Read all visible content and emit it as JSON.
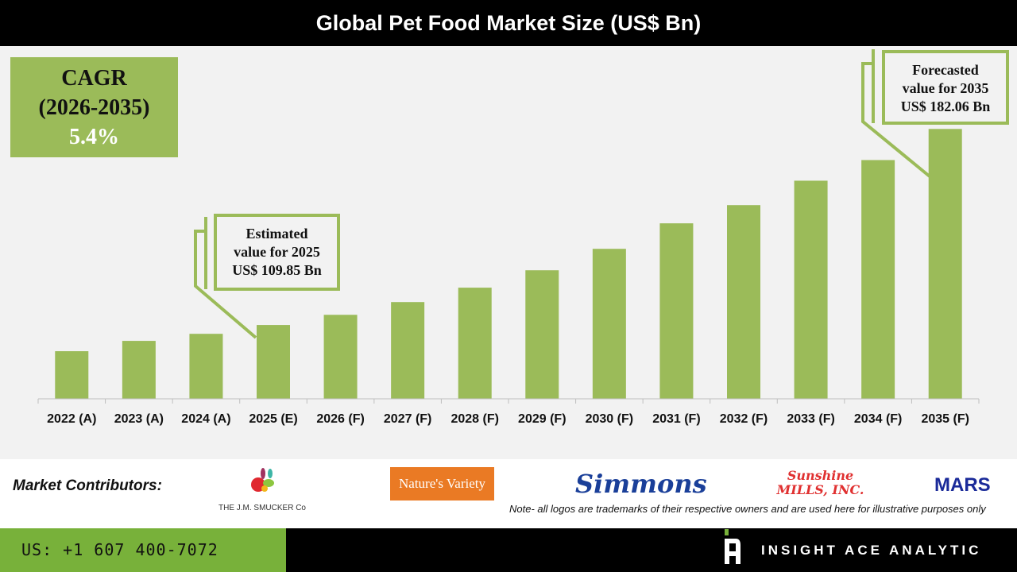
{
  "title": "Global Pet Food Market Size (US$ Bn)",
  "cagr": {
    "label": "CAGR",
    "period": "(2026-2035)",
    "value": "5.4%"
  },
  "callouts": {
    "estimated": {
      "line1": "Estimated",
      "line2": "value for 2025",
      "line3": "US$ 109.85 Bn"
    },
    "forecasted": {
      "line1": "Forecasted",
      "line2": "value for 2035",
      "line3": "US$ 182.06 Bn"
    }
  },
  "chart_data": {
    "type": "bar",
    "title": "Global Pet Food Market Size (US$ Bn)",
    "categories": [
      "2022 (A)",
      "2023 (A)",
      "2024 (A)",
      "2025 (E)",
      "2026 (F)",
      "2027 (F)",
      "2028 (F)",
      "2029 (F)",
      "2030 (F)",
      "2031 (F)",
      "2032 (F)",
      "2033 (F)",
      "2034 (F)",
      "2035 (F)"
    ],
    "values": [
      100.2,
      104.0,
      106.6,
      109.85,
      113.6,
      118.3,
      123.6,
      130.0,
      137.9,
      147.3,
      154.0,
      163.0,
      170.6,
      182.06
    ],
    "ylim": [
      82.66,
      200
    ],
    "xlabel": "",
    "ylabel": "",
    "grid": false,
    "bar_color": "#9bbb59"
  },
  "footer": {
    "contributors_label": "Market Contributors:",
    "logos": [
      "THE J.M. SMUCKER Co",
      "Nature's Variety",
      "Simmons",
      "Sunshine MILLS, INC.",
      "MARS"
    ],
    "note": "Note- all logos are trademarks of their respective owners and are used here for illustrative purposes only",
    "phone": "US: +1 607 400-7072",
    "brand": "INSIGHT ACE ANALYTIC"
  },
  "colors": {
    "accent": "#9bbb59",
    "phone_bg": "#78b13a",
    "header_bg": "#000000"
  }
}
